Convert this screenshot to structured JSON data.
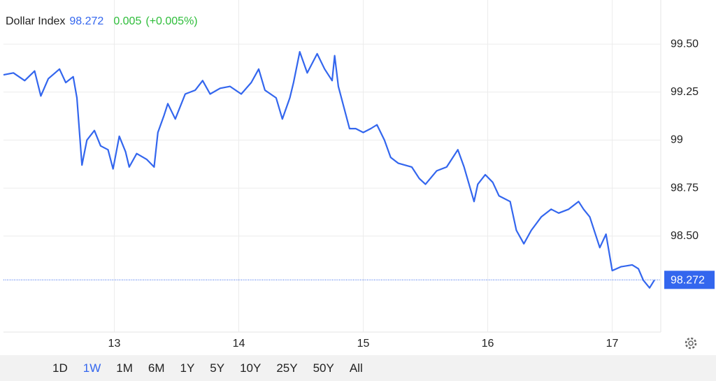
{
  "chart_data": {
    "type": "line",
    "title": "Dollar Index",
    "last_value": 98.272,
    "change": 0.005,
    "change_percent": {
      "value": 0.005,
      "label": "(+0.005%)"
    },
    "series": [
      {
        "name": "Dollar Index",
        "color": "#3366ee",
        "x": [
          12.11,
          12.19,
          12.28,
          12.36,
          12.41,
          12.47,
          12.56,
          12.61,
          12.67,
          12.7,
          12.74,
          12.78,
          12.84,
          12.89,
          12.95,
          12.99,
          13.04,
          13.09,
          13.12,
          13.18,
          13.26,
          13.32,
          13.35,
          13.4,
          13.43,
          13.49,
          13.57,
          13.65,
          13.71,
          13.77,
          13.85,
          13.93,
          14.02,
          14.1,
          14.16,
          14.21,
          14.3,
          14.35,
          14.41,
          14.44,
          14.49,
          14.55,
          14.63,
          14.69,
          14.75,
          14.77,
          14.8,
          14.89,
          14.94,
          15.0,
          15.06,
          15.11,
          15.17,
          15.22,
          15.28,
          15.39,
          15.45,
          15.5,
          15.59,
          15.67,
          15.76,
          15.81,
          15.89,
          15.92,
          15.98,
          16.04,
          16.09,
          16.18,
          16.23,
          16.29,
          16.35,
          16.43,
          16.51,
          16.57,
          16.65,
          16.73,
          16.77,
          16.82,
          16.9,
          16.95,
          17.0,
          17.07,
          17.16,
          17.21,
          17.25,
          17.3,
          17.34
        ],
        "values": [
          99.34,
          99.35,
          99.31,
          99.36,
          99.23,
          99.32,
          99.37,
          99.3,
          99.33,
          99.22,
          98.87,
          99.0,
          99.05,
          98.97,
          98.95,
          98.85,
          99.02,
          98.94,
          98.86,
          98.93,
          98.9,
          98.86,
          99.04,
          99.13,
          99.19,
          99.11,
          99.24,
          99.26,
          99.31,
          99.24,
          99.27,
          99.28,
          99.24,
          99.3,
          99.37,
          99.26,
          99.22,
          99.11,
          99.22,
          99.3,
          99.46,
          99.35,
          99.45,
          99.37,
          99.31,
          99.44,
          99.28,
          99.06,
          99.06,
          99.04,
          99.06,
          99.08,
          99.0,
          98.91,
          98.88,
          98.86,
          98.8,
          98.77,
          98.84,
          98.86,
          98.95,
          98.86,
          98.68,
          98.77,
          98.82,
          98.78,
          98.71,
          98.68,
          98.53,
          98.46,
          98.53,
          98.6,
          98.64,
          98.62,
          98.64,
          98.68,
          98.64,
          98.6,
          98.44,
          98.51,
          98.32,
          98.34,
          98.35,
          98.33,
          98.27,
          98.23,
          98.272
        ]
      }
    ],
    "xlim": [
      12.11,
      17.39
    ],
    "xticks": [
      13,
      14,
      15,
      16,
      17
    ],
    "ylim": [
      98.0,
      99.73
    ],
    "yticks": [
      {
        "value": 98.5,
        "label": "98.50"
      },
      98.75,
      99,
      99.25,
      {
        "value": 99.5,
        "label": "99.50"
      }
    ],
    "grid": true,
    "ranges": [
      "1D",
      "1W",
      "1M",
      "6M",
      "1Y",
      "5Y",
      "10Y",
      "25Y",
      "50Y",
      "All"
    ],
    "selected_range": "1W"
  }
}
